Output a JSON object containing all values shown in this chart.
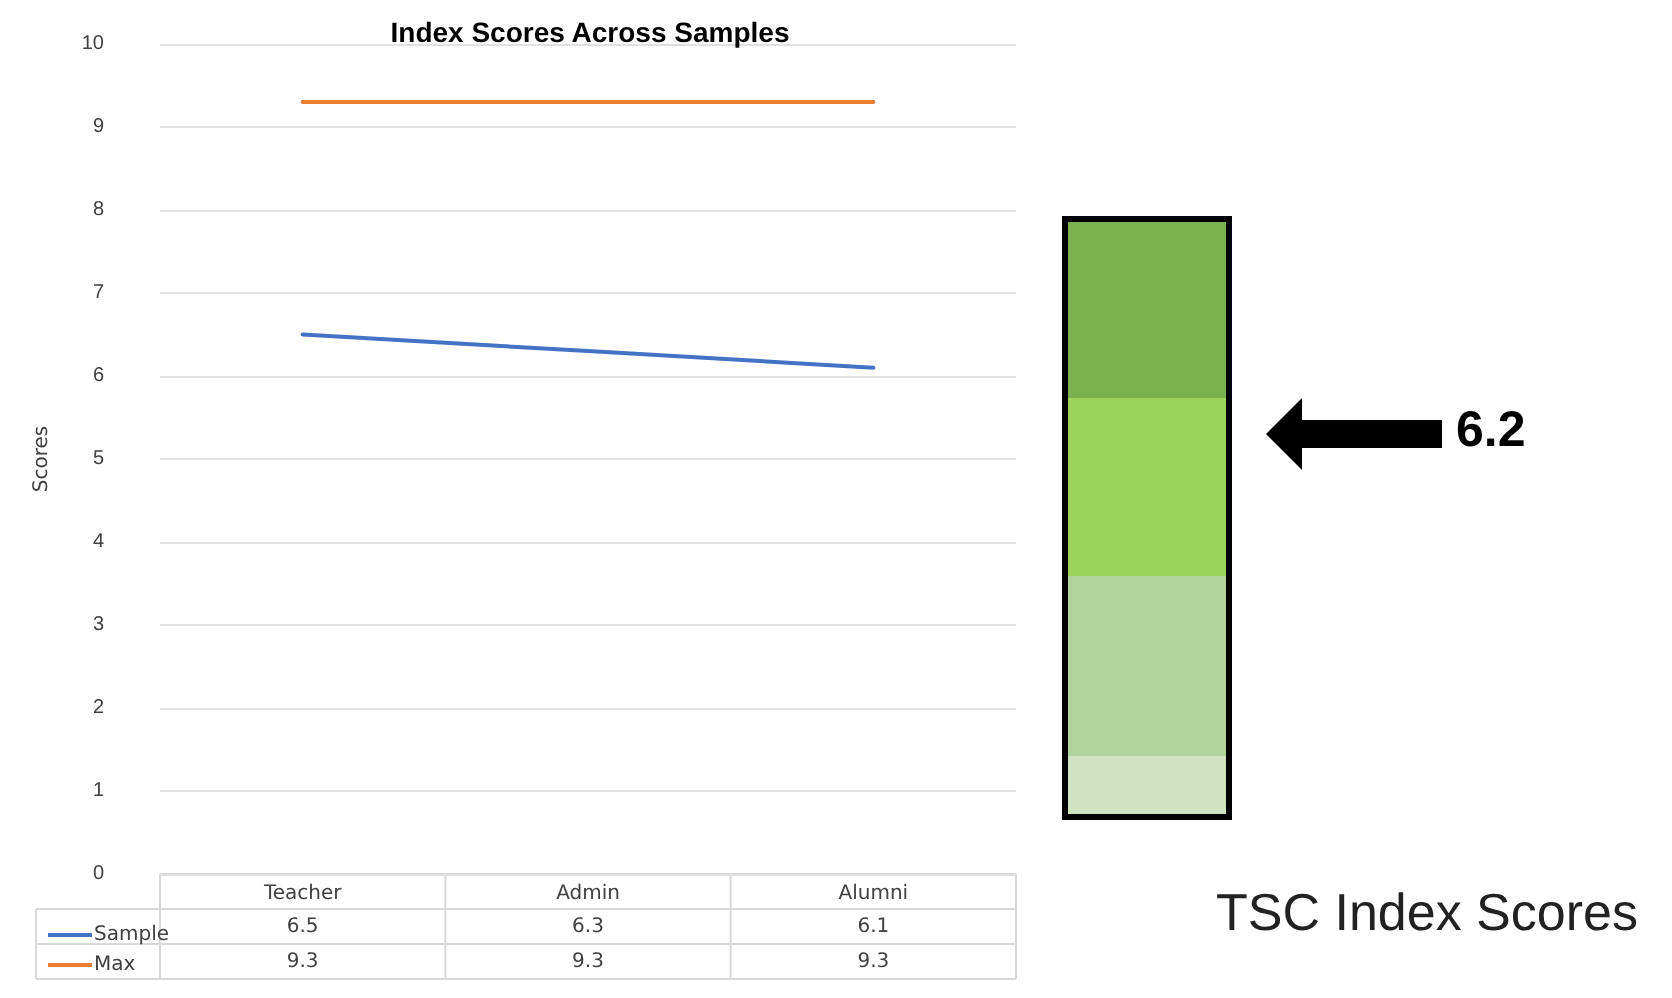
{
  "chart_data": {
    "type": "line",
    "title": "Index Scores Across Samples",
    "ylabel": "Scores",
    "categories": [
      "Teacher",
      "Admin",
      "Alumni"
    ],
    "series": [
      {
        "name": "Sample",
        "color": "#4472c4",
        "values": [
          6.5,
          6.3,
          6.1
        ]
      },
      {
        "name": "Max",
        "color": "#ed7d31",
        "values": [
          9.3,
          9.3,
          9.3
        ]
      }
    ],
    "ylim": [
      0,
      10
    ],
    "yticks": [
      0,
      1,
      2,
      3,
      4,
      5,
      6,
      7,
      8,
      9,
      10
    ],
    "grid": "y",
    "legend": "bottom",
    "marker": "none",
    "data_labels": true,
    "annotations": [
      "6.2",
      "TSC Index Scores"
    ]
  }
}
